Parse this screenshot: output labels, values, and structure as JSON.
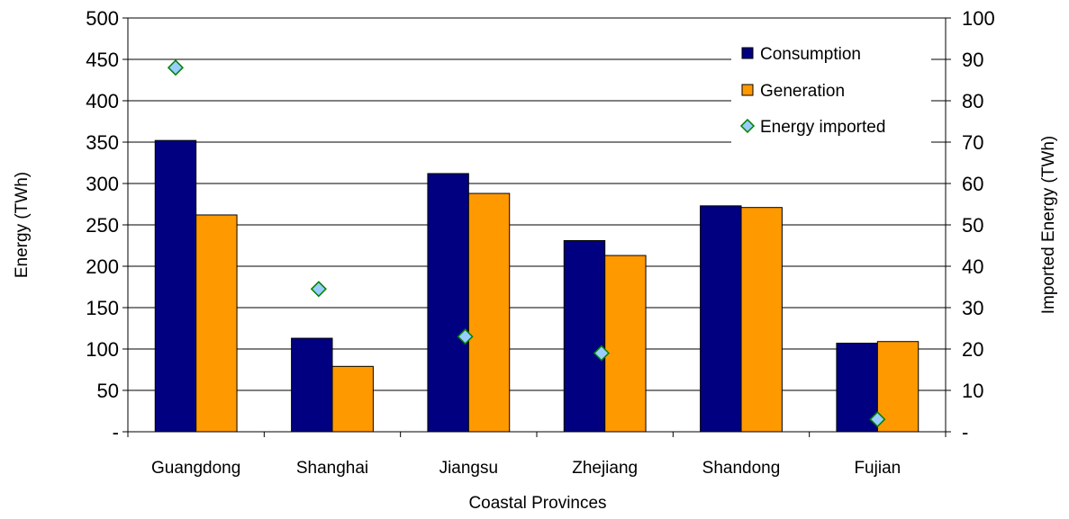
{
  "chart_data": {
    "type": "bar",
    "title": "",
    "xlabel": "Coastal Provinces",
    "ylabel": "Energy (TWh)",
    "y2label": "Imported Energy (TWh)",
    "categories": [
      "Guangdong",
      "Shanghai",
      "Jiangsu",
      "Zhejiang",
      "Shandong",
      "Fujian"
    ],
    "ylim": [
      0,
      500
    ],
    "y2lim": [
      0,
      100
    ],
    "yticks": [
      "-",
      "50",
      "100",
      "150",
      "200",
      "250",
      "300",
      "350",
      "400",
      "450",
      "500"
    ],
    "y2ticks": [
      "-",
      "10",
      "20",
      "30",
      "40",
      "50",
      "60",
      "70",
      "80",
      "90",
      "100"
    ],
    "grid": true,
    "legend_position": "top-right",
    "series": [
      {
        "name": "Consumption",
        "type": "bar",
        "axis": "left",
        "color": "#000080",
        "values": [
          352,
          113,
          312,
          231,
          273,
          107
        ]
      },
      {
        "name": "Generation",
        "type": "bar",
        "axis": "left",
        "color": "#FF9900",
        "values": [
          262,
          79,
          288,
          213,
          271,
          109
        ]
      },
      {
        "name": "Energy imported",
        "type": "scatter",
        "axis": "right",
        "color": "#99CCFF",
        "edge_color": "#008000",
        "values": [
          88,
          34.5,
          23,
          19,
          null,
          3
        ]
      }
    ]
  }
}
